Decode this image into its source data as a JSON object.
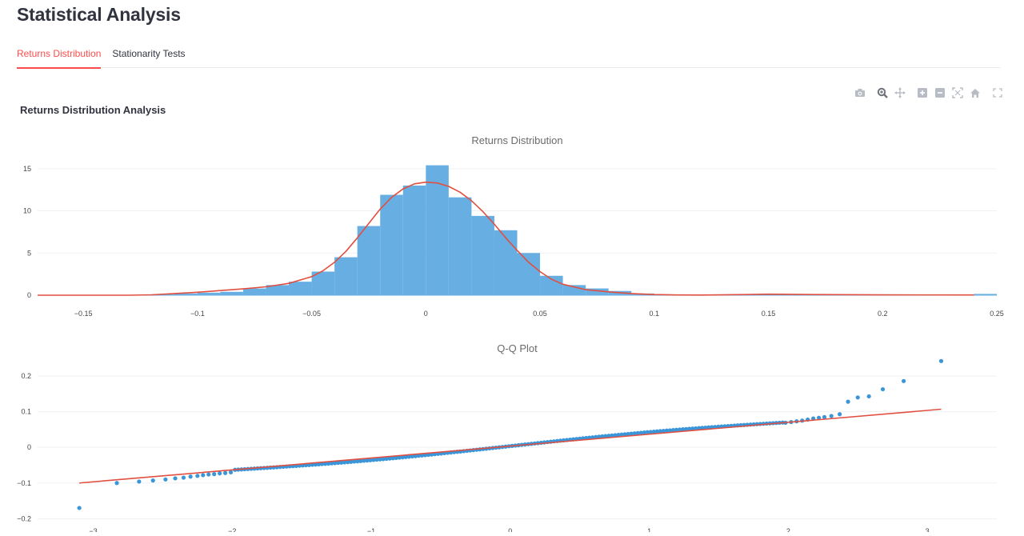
{
  "page": {
    "title": "Statistical Analysis"
  },
  "tabs": [
    {
      "label": "Returns Distribution",
      "active": true
    },
    {
      "label": "Stationarity Tests",
      "active": false
    }
  ],
  "section": {
    "heading": "Returns Distribution Analysis"
  },
  "modebar": {
    "icons": [
      "camera-icon",
      "zoom-icon",
      "pan-icon",
      "zoom-in-icon",
      "zoom-out-icon",
      "autoscale-icon",
      "home-icon",
      "fullscreen-icon"
    ]
  },
  "colors": {
    "accent": "#ff4b4b",
    "bars": "#67afe2",
    "kde": "#e14f40",
    "points": "#3a96d8",
    "grid": "#eef0f3"
  },
  "chart_data": [
    {
      "type": "bar",
      "title": "Returns Distribution",
      "bin_width": 0.01,
      "bins": [
        {
          "x0": -0.12,
          "v": 0.1
        },
        {
          "x0": -0.11,
          "v": 0.2
        },
        {
          "x0": -0.1,
          "v": 0.3
        },
        {
          "x0": -0.09,
          "v": 0.4
        },
        {
          "x0": -0.08,
          "v": 0.8
        },
        {
          "x0": -0.07,
          "v": 1.2
        },
        {
          "x0": -0.06,
          "v": 1.6
        },
        {
          "x0": -0.05,
          "v": 2.8
        },
        {
          "x0": -0.04,
          "v": 4.5
        },
        {
          "x0": -0.03,
          "v": 8.2
        },
        {
          "x0": -0.02,
          "v": 11.9
        },
        {
          "x0": -0.01,
          "v": 13.0
        },
        {
          "x0": 0.0,
          "v": 15.4
        },
        {
          "x0": 0.01,
          "v": 11.6
        },
        {
          "x0": 0.02,
          "v": 9.4
        },
        {
          "x0": 0.03,
          "v": 7.7
        },
        {
          "x0": 0.04,
          "v": 5.0
        },
        {
          "x0": 0.05,
          "v": 2.3
        },
        {
          "x0": 0.06,
          "v": 1.2
        },
        {
          "x0": 0.07,
          "v": 0.8
        },
        {
          "x0": 0.08,
          "v": 0.5
        },
        {
          "x0": 0.09,
          "v": 0.2
        },
        {
          "x0": 0.14,
          "v": 0.1
        },
        {
          "x0": 0.24,
          "v": 0.15
        }
      ],
      "kde": {
        "x": [
          -0.17,
          -0.15,
          -0.13,
          -0.12,
          -0.11,
          -0.1,
          -0.09,
          -0.08,
          -0.07,
          -0.06,
          -0.05,
          -0.045,
          -0.04,
          -0.035,
          -0.03,
          -0.025,
          -0.02,
          -0.015,
          -0.01,
          -0.005,
          0.0,
          0.005,
          0.01,
          0.015,
          0.02,
          0.025,
          0.03,
          0.035,
          0.04,
          0.045,
          0.05,
          0.055,
          0.06,
          0.07,
          0.08,
          0.09,
          0.1,
          0.11,
          0.12,
          0.14,
          0.15,
          0.17,
          0.2,
          0.24
        ],
        "y": [
          0.0,
          0.0,
          0.0,
          0.05,
          0.2,
          0.35,
          0.55,
          0.75,
          1.0,
          1.4,
          2.2,
          2.9,
          3.9,
          5.2,
          6.8,
          8.5,
          10.2,
          11.6,
          12.6,
          13.2,
          13.4,
          13.3,
          12.9,
          12.2,
          11.2,
          9.9,
          8.4,
          6.8,
          5.3,
          3.9,
          2.8,
          1.9,
          1.3,
          0.65,
          0.4,
          0.2,
          0.08,
          0.03,
          0.02,
          0.08,
          0.12,
          0.08,
          0.04,
          0.03
        ]
      },
      "xlim": [
        -0.17,
        0.25
      ],
      "ylim": [
        0,
        16.5
      ],
      "x_ticks": [
        -0.15,
        -0.1,
        -0.05,
        0,
        0.05,
        0.1,
        0.15,
        0.2,
        0.25
      ],
      "x_tick_labels": [
        "−0.15",
        "−0.1",
        "−0.05",
        "0",
        "0.05",
        "0.1",
        "0.15",
        "0.2",
        "0.25"
      ],
      "y_ticks": [
        0,
        5,
        10,
        15
      ],
      "y_tick_labels": [
        "0",
        "5",
        "10",
        "15"
      ]
    },
    {
      "type": "scatter",
      "title": "Q-Q Plot",
      "extremes": [
        [
          -3.1,
          -0.17
        ],
        [
          -2.83,
          -0.1
        ],
        [
          -2.67,
          -0.096
        ],
        [
          -2.57,
          -0.093
        ],
        [
          -2.48,
          -0.09
        ],
        [
          -2.41,
          -0.087
        ],
        [
          -2.35,
          -0.085
        ],
        [
          -2.3,
          -0.082
        ],
        [
          -2.25,
          -0.08
        ],
        [
          -2.21,
          -0.078
        ],
        [
          -2.17,
          -0.076
        ],
        [
          -2.13,
          -0.075
        ],
        [
          -2.09,
          -0.073
        ],
        [
          -2.05,
          -0.072
        ],
        [
          -2.01,
          -0.07
        ],
        [
          1.98,
          0.069
        ],
        [
          2.02,
          0.071
        ],
        [
          2.06,
          0.073
        ],
        [
          2.1,
          0.075
        ],
        [
          2.14,
          0.078
        ],
        [
          2.18,
          0.081
        ],
        [
          2.22,
          0.083
        ],
        [
          2.26,
          0.085
        ],
        [
          2.31,
          0.088
        ],
        [
          2.37,
          0.093
        ],
        [
          2.43,
          0.128
        ],
        [
          2.5,
          0.14
        ],
        [
          2.58,
          0.143
        ],
        [
          2.68,
          0.163
        ],
        [
          2.83,
          0.186
        ],
        [
          3.1,
          0.242
        ]
      ],
      "bulk_range": [
        -1.98,
        1.96
      ],
      "reference_line": {
        "x": [
          -3.1,
          3.1
        ],
        "y": [
          -0.1,
          0.107
        ]
      },
      "xlim": [
        -3.4,
        3.5
      ],
      "ylim": [
        -0.215,
        0.245
      ],
      "x_ticks": [
        -3,
        -2,
        -1,
        0,
        1,
        2,
        3
      ],
      "x_tick_labels": [
        "−3",
        "−2",
        "−1",
        "0",
        "1",
        "2",
        "3"
      ],
      "y_ticks": [
        -0.2,
        -0.1,
        0,
        0.1,
        0.2
      ],
      "y_tick_labels": [
        "−0.2",
        "−0.1",
        "0",
        "0.1",
        "0.2"
      ]
    }
  ]
}
